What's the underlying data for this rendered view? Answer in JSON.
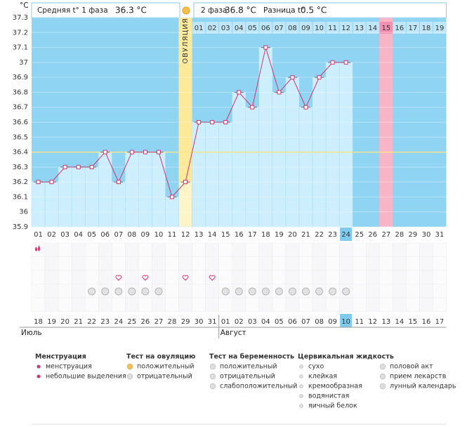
{
  "chart_data": {
    "type": "line",
    "y_unit": "°C",
    "header": {
      "phase1": "Средняя t° 1 фаза",
      "phase1_value": "36.3 °C",
      "phase2": "2 фаза",
      "phase2_value": "36.8 °C",
      "diff": "Разница t°",
      "diff_value": "0.5 °C"
    },
    "ylim": [
      35.9,
      37.3
    ],
    "yticks": [
      35.9,
      36,
      36.1,
      36.2,
      36.3,
      36.4,
      36.5,
      36.6,
      36.7,
      36.8,
      36.9,
      37,
      37.1,
      37.2,
      37.3
    ],
    "categories": [
      "01",
      "02",
      "03",
      "04",
      "05",
      "06",
      "07",
      "08",
      "09",
      "10",
      "11",
      "12",
      "13",
      "14",
      "15",
      "16",
      "17",
      "18",
      "19",
      "20",
      "21",
      "22",
      "23",
      "24",
      "25",
      "26",
      "27",
      "28",
      "29",
      "30",
      "31"
    ],
    "series": [
      {
        "name": "t°",
        "color": "#d6336c",
        "values": [
          36.2,
          36.2,
          36.3,
          36.3,
          36.3,
          36.4,
          36.2,
          36.4,
          36.4,
          36.4,
          36.1,
          36.2,
          36.6,
          36.6,
          36.6,
          36.8,
          36.7,
          37.1,
          36.8,
          36.9,
          36.7,
          36.9,
          37,
          37,
          null,
          null,
          null,
          null,
          null,
          null,
          null
        ]
      }
    ],
    "coverline": 36.4,
    "ovulation_day": "12",
    "ovulation_label": "ОВУЛЯЦИЯ",
    "today": "24",
    "phase2_days": [
      "01",
      "02",
      "03",
      "04",
      "05",
      "06",
      "07",
      "08",
      "09",
      "10",
      "11",
      "12",
      "13",
      "14",
      "15",
      "16",
      "17",
      "18",
      "19"
    ],
    "phase2_highlight": "15",
    "menstruation_days": [
      "01"
    ],
    "intercourse_days": [
      "07",
      "09",
      "12",
      "14"
    ],
    "pregnancy_test_days": [
      "05",
      "06",
      "07",
      "08",
      "09",
      "10",
      "15",
      "16",
      "17",
      "18",
      "19",
      "20",
      "21",
      "22",
      "23",
      "24"
    ],
    "calendar": [
      {
        "label": "18"
      },
      {
        "label": "19"
      },
      {
        "label": "20",
        "red": true
      },
      {
        "label": "21",
        "red": true
      },
      {
        "label": "22"
      },
      {
        "label": "23"
      },
      {
        "label": "24"
      },
      {
        "label": "25"
      },
      {
        "label": "26"
      },
      {
        "label": "27",
        "red": true
      },
      {
        "label": "28",
        "red": true
      },
      {
        "label": "29"
      },
      {
        "label": "30"
      },
      {
        "label": "31"
      },
      {
        "label": "01"
      },
      {
        "label": "02"
      },
      {
        "label": "03",
        "red": true
      },
      {
        "label": "04",
        "red": true
      },
      {
        "label": "05"
      },
      {
        "label": "06"
      },
      {
        "label": "07"
      },
      {
        "label": "08"
      },
      {
        "label": "09"
      },
      {
        "label": "10",
        "highlight": true
      },
      {
        "label": "11",
        "red": true
      },
      {
        "label": "12"
      },
      {
        "label": "13"
      },
      {
        "label": "14"
      },
      {
        "label": "15"
      },
      {
        "label": "16"
      },
      {
        "label": "17",
        "red": true
      }
    ],
    "months": [
      {
        "label": "Июль",
        "start": "18"
      },
      {
        "label": "Август",
        "start": "01"
      }
    ],
    "legend": [
      {
        "title": "Менструация",
        "items": [
          "менструация",
          "небольшие выделения"
        ]
      },
      {
        "title": "Тест на овуляцию",
        "items": [
          "положительный",
          "отрицательный"
        ]
      },
      {
        "title": "Тест на беременность",
        "items": [
          "положительный",
          "отрицательный",
          "слабоположительный"
        ]
      },
      {
        "title": "Цервикальная жидкость",
        "items": [
          "сухо",
          "клейкая",
          "кремообразная",
          "водянистая",
          "яичный белок"
        ]
      },
      {
        "title": "",
        "items": [
          "половой акт",
          "прием лекарств",
          "лунный календарь"
        ]
      }
    ]
  }
}
